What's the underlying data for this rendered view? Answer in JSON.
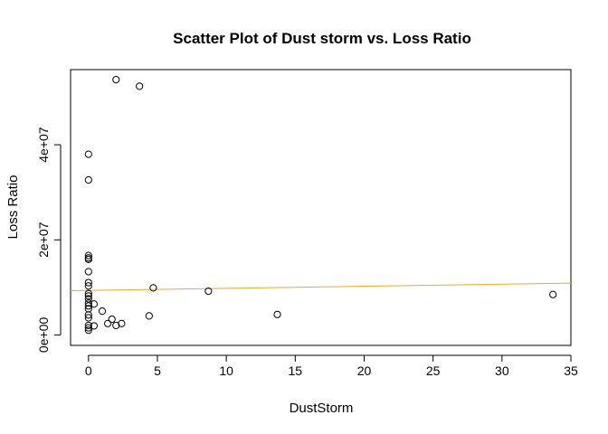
{
  "chart_data": {
    "type": "scatter",
    "title": "Scatter Plot of Dust storm vs. Loss Ratio",
    "xlabel": "DustStorm",
    "ylabel": "Loss Ratio",
    "xlim": [
      -1.3,
      35
    ],
    "ylim": [
      -2200000,
      55800000
    ],
    "x_ticks": [
      0,
      5,
      10,
      15,
      20,
      25,
      30,
      35
    ],
    "x_tick_labels": [
      "0",
      "5",
      "10",
      "15",
      "20",
      "25",
      "30",
      "35"
    ],
    "y_ticks": [
      0,
      20000000,
      40000000
    ],
    "y_tick_labels": [
      "0e+00",
      "2e+07",
      "4e+07"
    ],
    "grid": false,
    "legend": "none",
    "point_color": "#000000",
    "line_color": "#f5a623",
    "points": [
      {
        "x": 2.0,
        "y": 53700000
      },
      {
        "x": 3.7,
        "y": 52300000
      },
      {
        "x": 0,
        "y": 38000000
      },
      {
        "x": 0,
        "y": 32600000
      },
      {
        "x": 0,
        "y": 16700000
      },
      {
        "x": 0,
        "y": 16200000
      },
      {
        "x": 0,
        "y": 15900000
      },
      {
        "x": 0,
        "y": 13300000
      },
      {
        "x": 0,
        "y": 11000000
      },
      {
        "x": 0,
        "y": 10300000
      },
      {
        "x": 0,
        "y": 8700000
      },
      {
        "x": 0,
        "y": 8200000
      },
      {
        "x": 0,
        "y": 7600000
      },
      {
        "x": 0,
        "y": 6700000
      },
      {
        "x": 0,
        "y": 6100000
      },
      {
        "x": 0,
        "y": 5500000
      },
      {
        "x": 0,
        "y": 4200000
      },
      {
        "x": 0,
        "y": 3600000
      },
      {
        "x": 0,
        "y": 2000000
      },
      {
        "x": 0,
        "y": 1500000
      },
      {
        "x": 0,
        "y": 1000000
      },
      {
        "x": 0.4,
        "y": 6500000
      },
      {
        "x": 0.4,
        "y": 1900000
      },
      {
        "x": 1.0,
        "y": 5000000
      },
      {
        "x": 1.4,
        "y": 2400000
      },
      {
        "x": 1.7,
        "y": 3300000
      },
      {
        "x": 2.0,
        "y": 2000000
      },
      {
        "x": 2.4,
        "y": 2400000
      },
      {
        "x": 4.4,
        "y": 4000000
      },
      {
        "x": 4.7,
        "y": 9900000
      },
      {
        "x": 8.7,
        "y": 9200000
      },
      {
        "x": 13.7,
        "y": 4300000
      },
      {
        "x": 33.7,
        "y": 8500000
      }
    ],
    "fit_line": {
      "x": [
        -1.3,
        35
      ],
      "y": [
        9300000,
        10900000
      ]
    }
  }
}
